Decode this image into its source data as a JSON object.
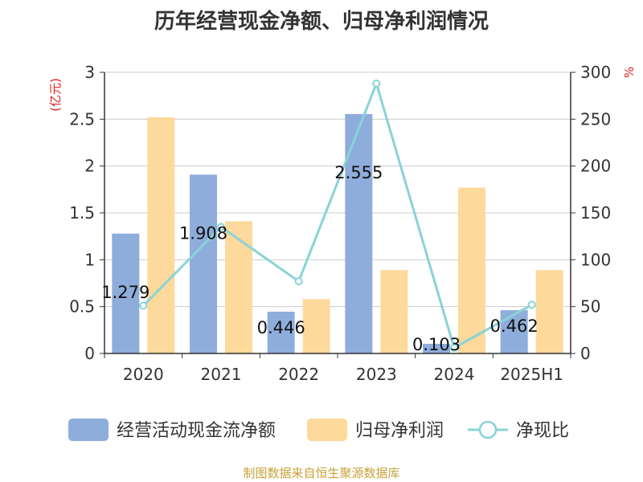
{
  "title": "历年经营现金净额、归母净利润情况",
  "source": "制图数据来自恒生聚源数据库",
  "chart_data": {
    "type": "bar",
    "title": "历年经营现金净额、归母净利润情况",
    "categories": [
      "2020",
      "2021",
      "2022",
      "2023",
      "2024",
      "2025H1"
    ],
    "y_left": {
      "label": "(亿元)",
      "ticks": [
        "0",
        "0.5",
        "1",
        "1.5",
        "2",
        "2.5",
        "3"
      ],
      "range": [
        0,
        3
      ]
    },
    "y_right": {
      "label": "%",
      "ticks": [
        "0",
        "50",
        "100",
        "150",
        "200",
        "250",
        "300"
      ],
      "range": [
        0,
        300
      ]
    },
    "grid": true,
    "legend_position": "bottom",
    "series": [
      {
        "name": "经营活动现金流净额",
        "type": "bar",
        "axis": "left",
        "color": "#8eaddb",
        "values": [
          1.279,
          1.908,
          0.446,
          2.555,
          0.103,
          0.462
        ],
        "labels": [
          "1.279",
          "1.908",
          "0.446",
          "2.555",
          "0.103",
          "0.462"
        ]
      },
      {
        "name": "归母净利润",
        "type": "bar",
        "axis": "left",
        "color": "#fdd99b",
        "values": [
          2.52,
          1.41,
          0.58,
          0.89,
          1.77,
          0.89
        ]
      },
      {
        "name": "净现比",
        "type": "line",
        "axis": "right",
        "color": "#89d3d8",
        "values": [
          51,
          135,
          77,
          288,
          6,
          52
        ]
      }
    ]
  }
}
